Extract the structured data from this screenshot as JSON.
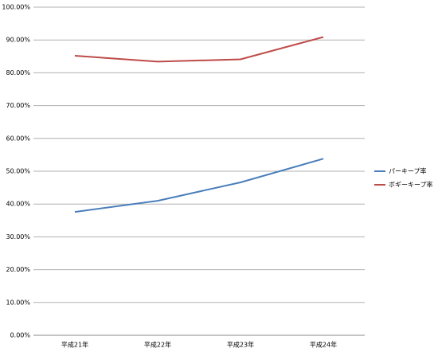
{
  "chart_data": {
    "type": "line",
    "categories": [
      "平成21年",
      "平成22年",
      "平成23年",
      "平成24年"
    ],
    "series": [
      {
        "name": "パーキープ率",
        "color": "#4a7ebb",
        "values": [
          37.6,
          41.0,
          46.6,
          53.8
        ]
      },
      {
        "name": "ボギーキープ率",
        "color": "#be4b48",
        "values": [
          85.2,
          83.4,
          84.1,
          90.9
        ]
      }
    ],
    "ylim": [
      0,
      100
    ],
    "yticks": [
      {
        "value": 0,
        "label": "0.00%"
      },
      {
        "value": 10,
        "label": "10.00%"
      },
      {
        "value": 20,
        "label": "20.00%"
      },
      {
        "value": 30,
        "label": "30.00%"
      },
      {
        "value": 40,
        "label": "40.00%"
      },
      {
        "value": 50,
        "label": "50.00%"
      },
      {
        "value": 60,
        "label": "60.00%"
      },
      {
        "value": 70,
        "label": "70.00%"
      },
      {
        "value": 80,
        "label": "80.00%"
      },
      {
        "value": 90,
        "label": "90.00%"
      },
      {
        "value": 100,
        "label": "100.00%"
      }
    ],
    "grid": true,
    "legend": "right"
  }
}
